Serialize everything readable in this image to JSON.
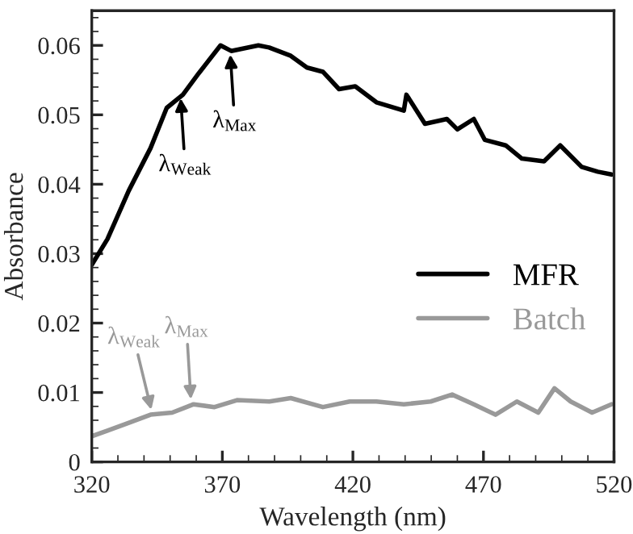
{
  "chart_data": {
    "type": "line",
    "xlabel": "Wavelength (nm)",
    "ylabel": "Absorbance",
    "xlim": [
      320,
      520
    ],
    "xticks": [
      320,
      370,
      420,
      470,
      520
    ],
    "ylim": [
      0,
      0.065
    ],
    "yticks": [
      {
        "value": 0,
        "label": "0"
      },
      0.01,
      0.02,
      0.03,
      0.04,
      0.05,
      0.06
    ],
    "grid": false,
    "legend": "right",
    "marker": "none",
    "line_style": "solid",
    "series": [
      {
        "name": "MFR",
        "color": "#000000",
        "x": [
          320,
          326,
          334.2,
          342.5,
          348.7,
          354.9,
          361,
          369.3,
          373.4,
          383.8,
          387.9,
          396.2,
          402.4,
          408.5,
          414.7,
          420.9,
          429,
          439.5,
          440.5,
          447.6,
          456,
          460,
          466.3,
          470.5,
          478.5,
          484.7,
          493.2,
          499.4,
          507.6,
          513.8,
          519
        ],
        "values": [
          0.0284,
          0.0321,
          0.0391,
          0.0452,
          0.051,
          0.0529,
          0.056,
          0.06,
          0.0592,
          0.06,
          0.0597,
          0.0585,
          0.0568,
          0.0562,
          0.0537,
          0.0541,
          0.0518,
          0.0506,
          0.0529,
          0.0487,
          0.0494,
          0.0479,
          0.0494,
          0.0464,
          0.0456,
          0.0437,
          0.0433,
          0.0456,
          0.0425,
          0.0418,
          0.0414
        ]
      },
      {
        "name": "Batch",
        "color": "#999999",
        "x": [
          320,
          326,
          334,
          342.5,
          350.8,
          359,
          367,
          375.6,
          388,
          396.2,
          408.5,
          418.8,
          429,
          439.5,
          449.8,
          458,
          466.3,
          474.6,
          482.8,
          491,
          497.2,
          503.4,
          511.6,
          519
        ],
        "values": [
          0.0037,
          0.0045,
          0.0056,
          0.0068,
          0.0071,
          0.0083,
          0.0079,
          0.0089,
          0.0087,
          0.0092,
          0.0079,
          0.0087,
          0.0087,
          0.0083,
          0.0087,
          0.0097,
          0.0083,
          0.0068,
          0.0087,
          0.0071,
          0.0106,
          0.0087,
          0.0071,
          0.0083
        ]
      }
    ],
    "annotations": [
      {
        "text": "λ$_{Weak}$",
        "x": 354,
        "y": 0.0527
      },
      {
        "text": "λ$_{Max}$",
        "x": 373,
        "y": 0.059
      },
      {
        "text": "λ$_{Weak}$",
        "x": 343,
        "y": 0.0072
      },
      {
        "text": "λ$_{Max}$",
        "x": 358,
        "y": 0.0087
      }
    ]
  }
}
